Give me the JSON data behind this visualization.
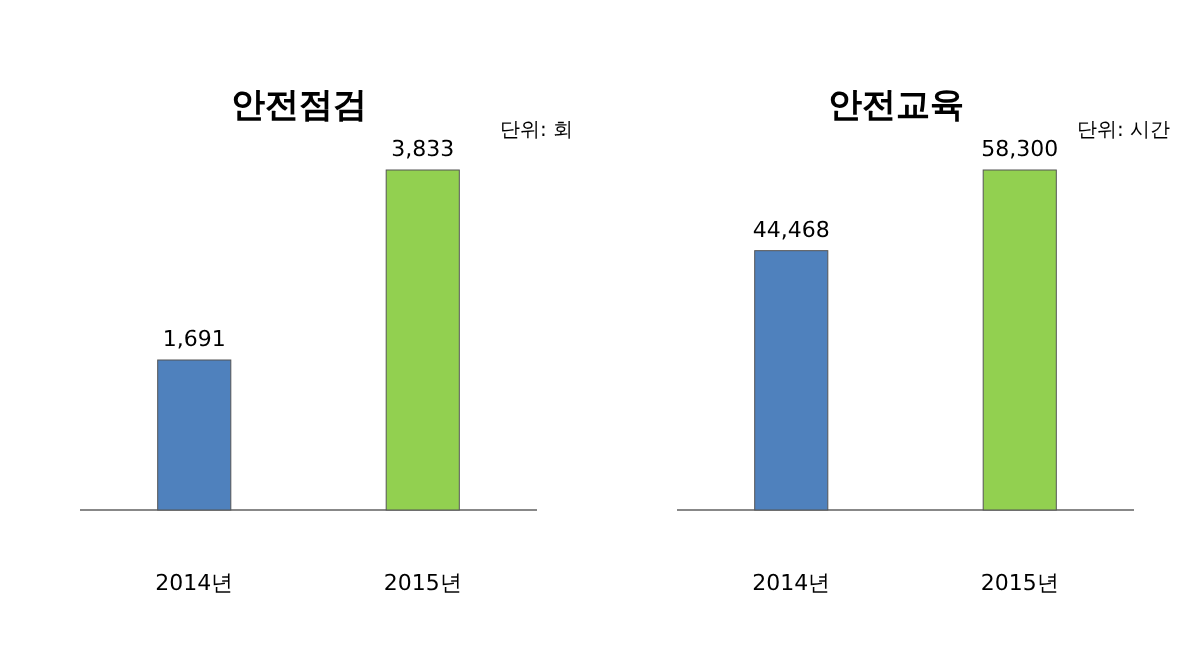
{
  "chart_data": [
    {
      "type": "bar",
      "title": "안전점검",
      "annotations": [
        "단위: 회"
      ],
      "categories": [
        "2014년",
        "2015년"
      ],
      "values": [
        1691,
        3833
      ],
      "colors": [
        "#4f81bd",
        "#92d050"
      ],
      "value_labels": [
        "1,691",
        "3,833"
      ]
    },
    {
      "type": "bar",
      "title": "안전교육",
      "annotations": [
        "단위: 시간"
      ],
      "categories": [
        "2014년",
        "2015년"
      ],
      "values": [
        44468,
        58300
      ],
      "colors": [
        "#4f81bd",
        "#92d050"
      ],
      "value_labels": [
        "44,468",
        "58,300"
      ]
    }
  ]
}
